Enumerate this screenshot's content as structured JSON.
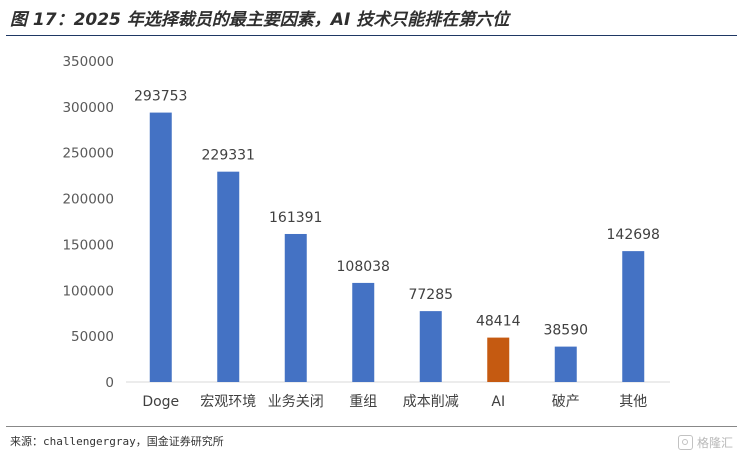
{
  "page": {
    "title": "图 17：2025 年选择裁员的最主要因素，AI 技术只能排在第六位",
    "source": "来源：challengergray，国金证券研究所",
    "watermark_text": "格隆汇",
    "watermark_icon": "gelonghui-logo-icon"
  },
  "chart_data": {
    "type": "bar",
    "title": "",
    "xlabel": "",
    "ylabel": "",
    "categories": [
      "Doge",
      "宏观环境",
      "业务关闭",
      "重组",
      "成本削减",
      "AI",
      "破产",
      "其他"
    ],
    "values": [
      293753,
      229331,
      161391,
      108038,
      77285,
      48414,
      38590,
      142698
    ],
    "data_labels": [
      "293753",
      "229331",
      "161391",
      "108038",
      "77285",
      "48414",
      "38590",
      "142698"
    ],
    "ylim": [
      0,
      350000
    ],
    "yticks": [
      0,
      50000,
      100000,
      150000,
      200000,
      250000,
      300000,
      350000
    ],
    "ytick_labels": [
      "0",
      "50000",
      "100000",
      "150000",
      "200000",
      "250000",
      "300000",
      "350000"
    ],
    "colors": [
      "#4472c4",
      "#4472c4",
      "#4472c4",
      "#4472c4",
      "#4472c4",
      "#c55a11",
      "#4472c4",
      "#4472c4"
    ],
    "grid": false,
    "legend": "none"
  }
}
